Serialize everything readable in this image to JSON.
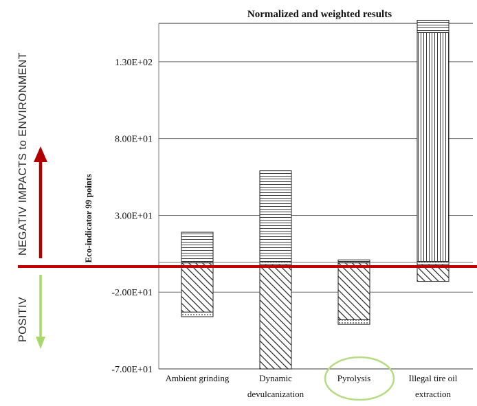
{
  "chart_data": {
    "type": "bar",
    "title": "Normalized and weighted results",
    "ylabel": "Eco-indicator 99 points",
    "xlabel": "",
    "ylim": [
      -70,
      155
    ],
    "y_ticks": [
      "1.30E+02",
      "8.00E+01",
      "3.00E+01",
      "-2.00E+01",
      "-7.00E+01"
    ],
    "y_tick_values": [
      130,
      80,
      30,
      -20,
      -70
    ],
    "grid": "horizontal",
    "categories": [
      {
        "line1": "Ambient grinding",
        "line2": ""
      },
      {
        "line1": "Dynamic",
        "line2": "devulcanization"
      },
      {
        "line1": "Pyrolysis",
        "line2": ""
      },
      {
        "line1": "Illegal tire oil",
        "line2": "extraction"
      }
    ],
    "stacked": true,
    "segments": [
      {
        "category": 0,
        "from": 0,
        "to": -1,
        "pattern": "dots"
      },
      {
        "category": 0,
        "from": 0,
        "to": 19,
        "pattern": "horizontal"
      },
      {
        "category": 0,
        "from": -1,
        "to": -33,
        "pattern": "diagonal"
      },
      {
        "category": 0,
        "from": -33,
        "to": -36,
        "pattern": "dots"
      },
      {
        "category": 1,
        "from": 0,
        "to": -2,
        "pattern": "dots"
      },
      {
        "category": 1,
        "from": 0,
        "to": 59,
        "pattern": "horizontal"
      },
      {
        "category": 1,
        "from": -2,
        "to": -70,
        "pattern": "diagonal"
      },
      {
        "category": 2,
        "from": 0,
        "to": -1,
        "pattern": "dots"
      },
      {
        "category": 2,
        "from": 1,
        "to": 0,
        "pattern": "horizontal"
      },
      {
        "category": 2,
        "from": -1,
        "to": -38,
        "pattern": "diagonal"
      },
      {
        "category": 2,
        "from": -38,
        "to": -41,
        "pattern": "dots"
      },
      {
        "category": 3,
        "from": 0,
        "to": -2,
        "pattern": "dots"
      },
      {
        "category": 3,
        "from": 0,
        "to": 149,
        "pattern": "vertical"
      },
      {
        "category": 3,
        "from": 149,
        "to": 157,
        "pattern": "horizontal"
      },
      {
        "category": 3,
        "from": -2,
        "to": -13,
        "pattern": "diagonal"
      }
    ]
  },
  "annotations": {
    "negative_label": "NEGATIV IMPACTS to ENVIRONMENT",
    "positive_label": "POSITIV",
    "highlighted_category": "Pyrolysis",
    "colors": {
      "baseline": "#c00000",
      "negative_arrow": "#b00000",
      "positive_arrow": "#a8d96a",
      "highlight_circle": "#b5dc84"
    }
  }
}
